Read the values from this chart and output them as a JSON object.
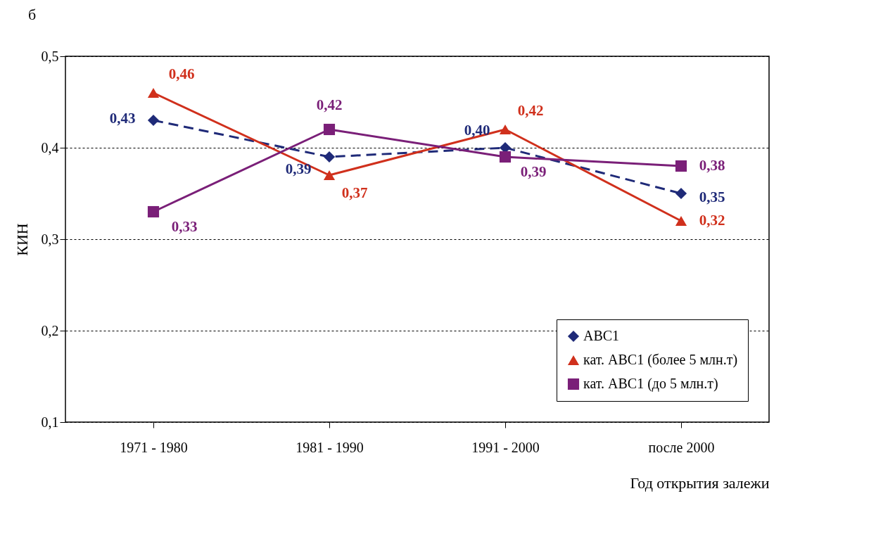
{
  "chart_data": {
    "type": "line",
    "xlabel": "Год открытия залежи",
    "ylabel": "КИН",
    "annotations": [
      "б"
    ],
    "categories": [
      "1971 - 1980",
      "1981 - 1990",
      "1991 - 2000",
      "после 2000"
    ],
    "series": [
      {
        "name": "ABC1",
        "color": "#1f2a78",
        "marker": "diamond",
        "line_style": "dashed",
        "values": [
          0.43,
          0.39,
          0.4,
          0.35
        ],
        "value_labels": [
          "0,43",
          "0,39",
          "0,40",
          "0,35"
        ]
      },
      {
        "name": "кат. ABC1 (более 5 млн.т)",
        "color": "#d0301c",
        "marker": "triangle",
        "line_style": "solid",
        "values": [
          0.46,
          0.37,
          0.42,
          0.32
        ],
        "value_labels": [
          "0,46",
          "0,37",
          "0,42",
          "0,32"
        ]
      },
      {
        "name": "кат. ABC1 (до 5 млн.т)",
        "color": "#7a1f78",
        "marker": "square",
        "line_style": "solid",
        "values": [
          0.33,
          0.42,
          0.39,
          0.38
        ],
        "value_labels": [
          "0,33",
          "0,42",
          "0,39",
          "0,38"
        ]
      }
    ],
    "ylim": [
      0.1,
      0.5
    ],
    "yticks": [
      {
        "value": 0.1,
        "label": "0,1"
      },
      {
        "value": 0.2,
        "label": "0,2"
      },
      {
        "value": 0.3,
        "label": "0,3"
      },
      {
        "value": 0.4,
        "label": "0,4"
      },
      {
        "value": 0.5,
        "label": "0,5"
      }
    ],
    "grid": "y",
    "legend": "bottom right"
  }
}
